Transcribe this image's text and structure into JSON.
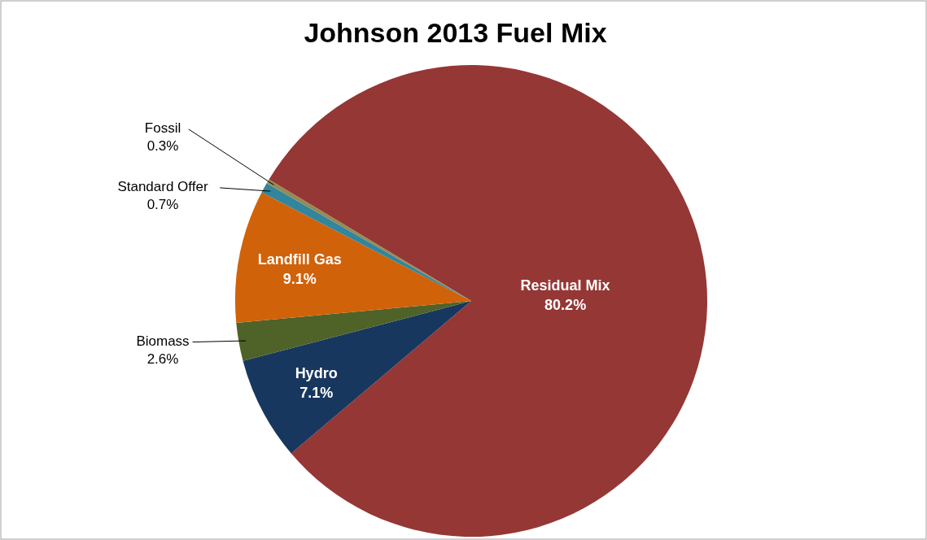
{
  "chart_data": {
    "type": "pie",
    "title": "Johnson 2013 Fuel Mix",
    "categories": [
      "Residual Mix",
      "Hydro",
      "Biomass",
      "Landfill Gas",
      "Standard Offer",
      "Fossil"
    ],
    "values": [
      80.2,
      7.1,
      2.6,
      9.1,
      0.7,
      0.3
    ],
    "colors": [
      "#953735",
      "#17375e",
      "#4f6228",
      "#d0620a",
      "#31859c",
      "#948a54"
    ],
    "value_labels": [
      "80.2%",
      "7.1%",
      "2.6%",
      "9.1%",
      "0.7%",
      "0.3%"
    ]
  }
}
